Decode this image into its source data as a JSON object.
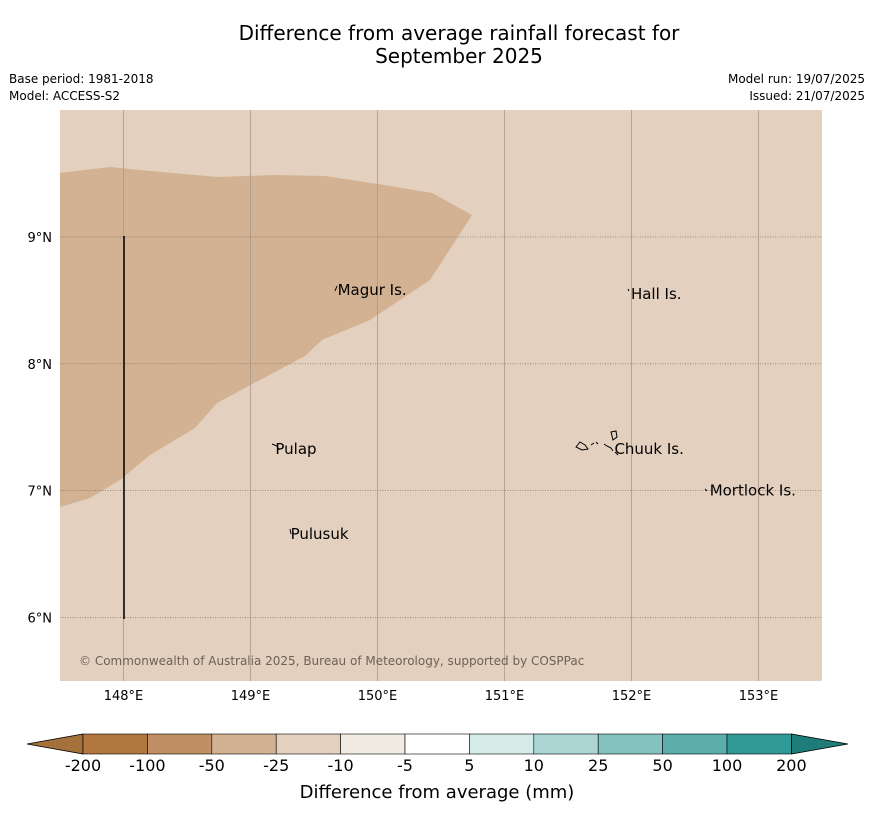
{
  "title_line1": "Difference from average rainfall forecast for",
  "title_line2": "September 2025",
  "meta_left": {
    "base_period": "Base period: 1981-2018",
    "model": "Model: ACCESS-S2"
  },
  "meta_right": {
    "model_run": "Model run: 19/07/2025",
    "issued": "Issued: 21/07/2025"
  },
  "map": {
    "lon_range": [
      147.5,
      153.5
    ],
    "lat_range": [
      5.5,
      10.0
    ],
    "background_color": "#e3d0bf",
    "drier_region_color": "#d2b292",
    "lon_ticks": [
      {
        "value": 148,
        "label": "148°E"
      },
      {
        "value": 149,
        "label": "149°E"
      },
      {
        "value": 150,
        "label": "150°E"
      },
      {
        "value": 151,
        "label": "151°E"
      },
      {
        "value": 152,
        "label": "152°E"
      },
      {
        "value": 153,
        "label": "153°E"
      }
    ],
    "lat_ticks": [
      {
        "value": 9,
        "label": "9°N"
      },
      {
        "value": 8,
        "label": "8°N"
      },
      {
        "value": 7,
        "label": "7°N"
      },
      {
        "value": 6,
        "label": "6°N"
      }
    ],
    "places": [
      {
        "name": "Magur Is.",
        "lon": 149.67,
        "lat": 8.58
      },
      {
        "name": "Hall Is.",
        "lon": 151.98,
        "lat": 8.55
      },
      {
        "name": "Pulap",
        "lon": 149.18,
        "lat": 7.33
      },
      {
        "name": "Chuuk Is.",
        "lon": 151.85,
        "lat": 7.33
      },
      {
        "name": "Mortlock Is.",
        "lon": 152.6,
        "lat": 7.0
      },
      {
        "name": "Pulusuk",
        "lon": 149.3,
        "lat": 6.66
      }
    ],
    "copyright": "© Commonwealth of Australia 2025, Bureau of Meteorology, supported by COSPPac"
  },
  "colorbar": {
    "title": "Difference from average (mm)",
    "labels": [
      "-200",
      "-100",
      "-50",
      "-25",
      "-10",
      "-5",
      "5",
      "10",
      "25",
      "50",
      "100",
      "200"
    ],
    "colors": [
      "#a5703a",
      "#b0773f",
      "#c08f65",
      "#d2b292",
      "#e3d0bf",
      "#f0ebe3",
      "#ffffff",
      "#d5ebe8",
      "#acd6d3",
      "#84c2bf",
      "#5baeab",
      "#2f9995",
      "#1e7d79"
    ]
  }
}
